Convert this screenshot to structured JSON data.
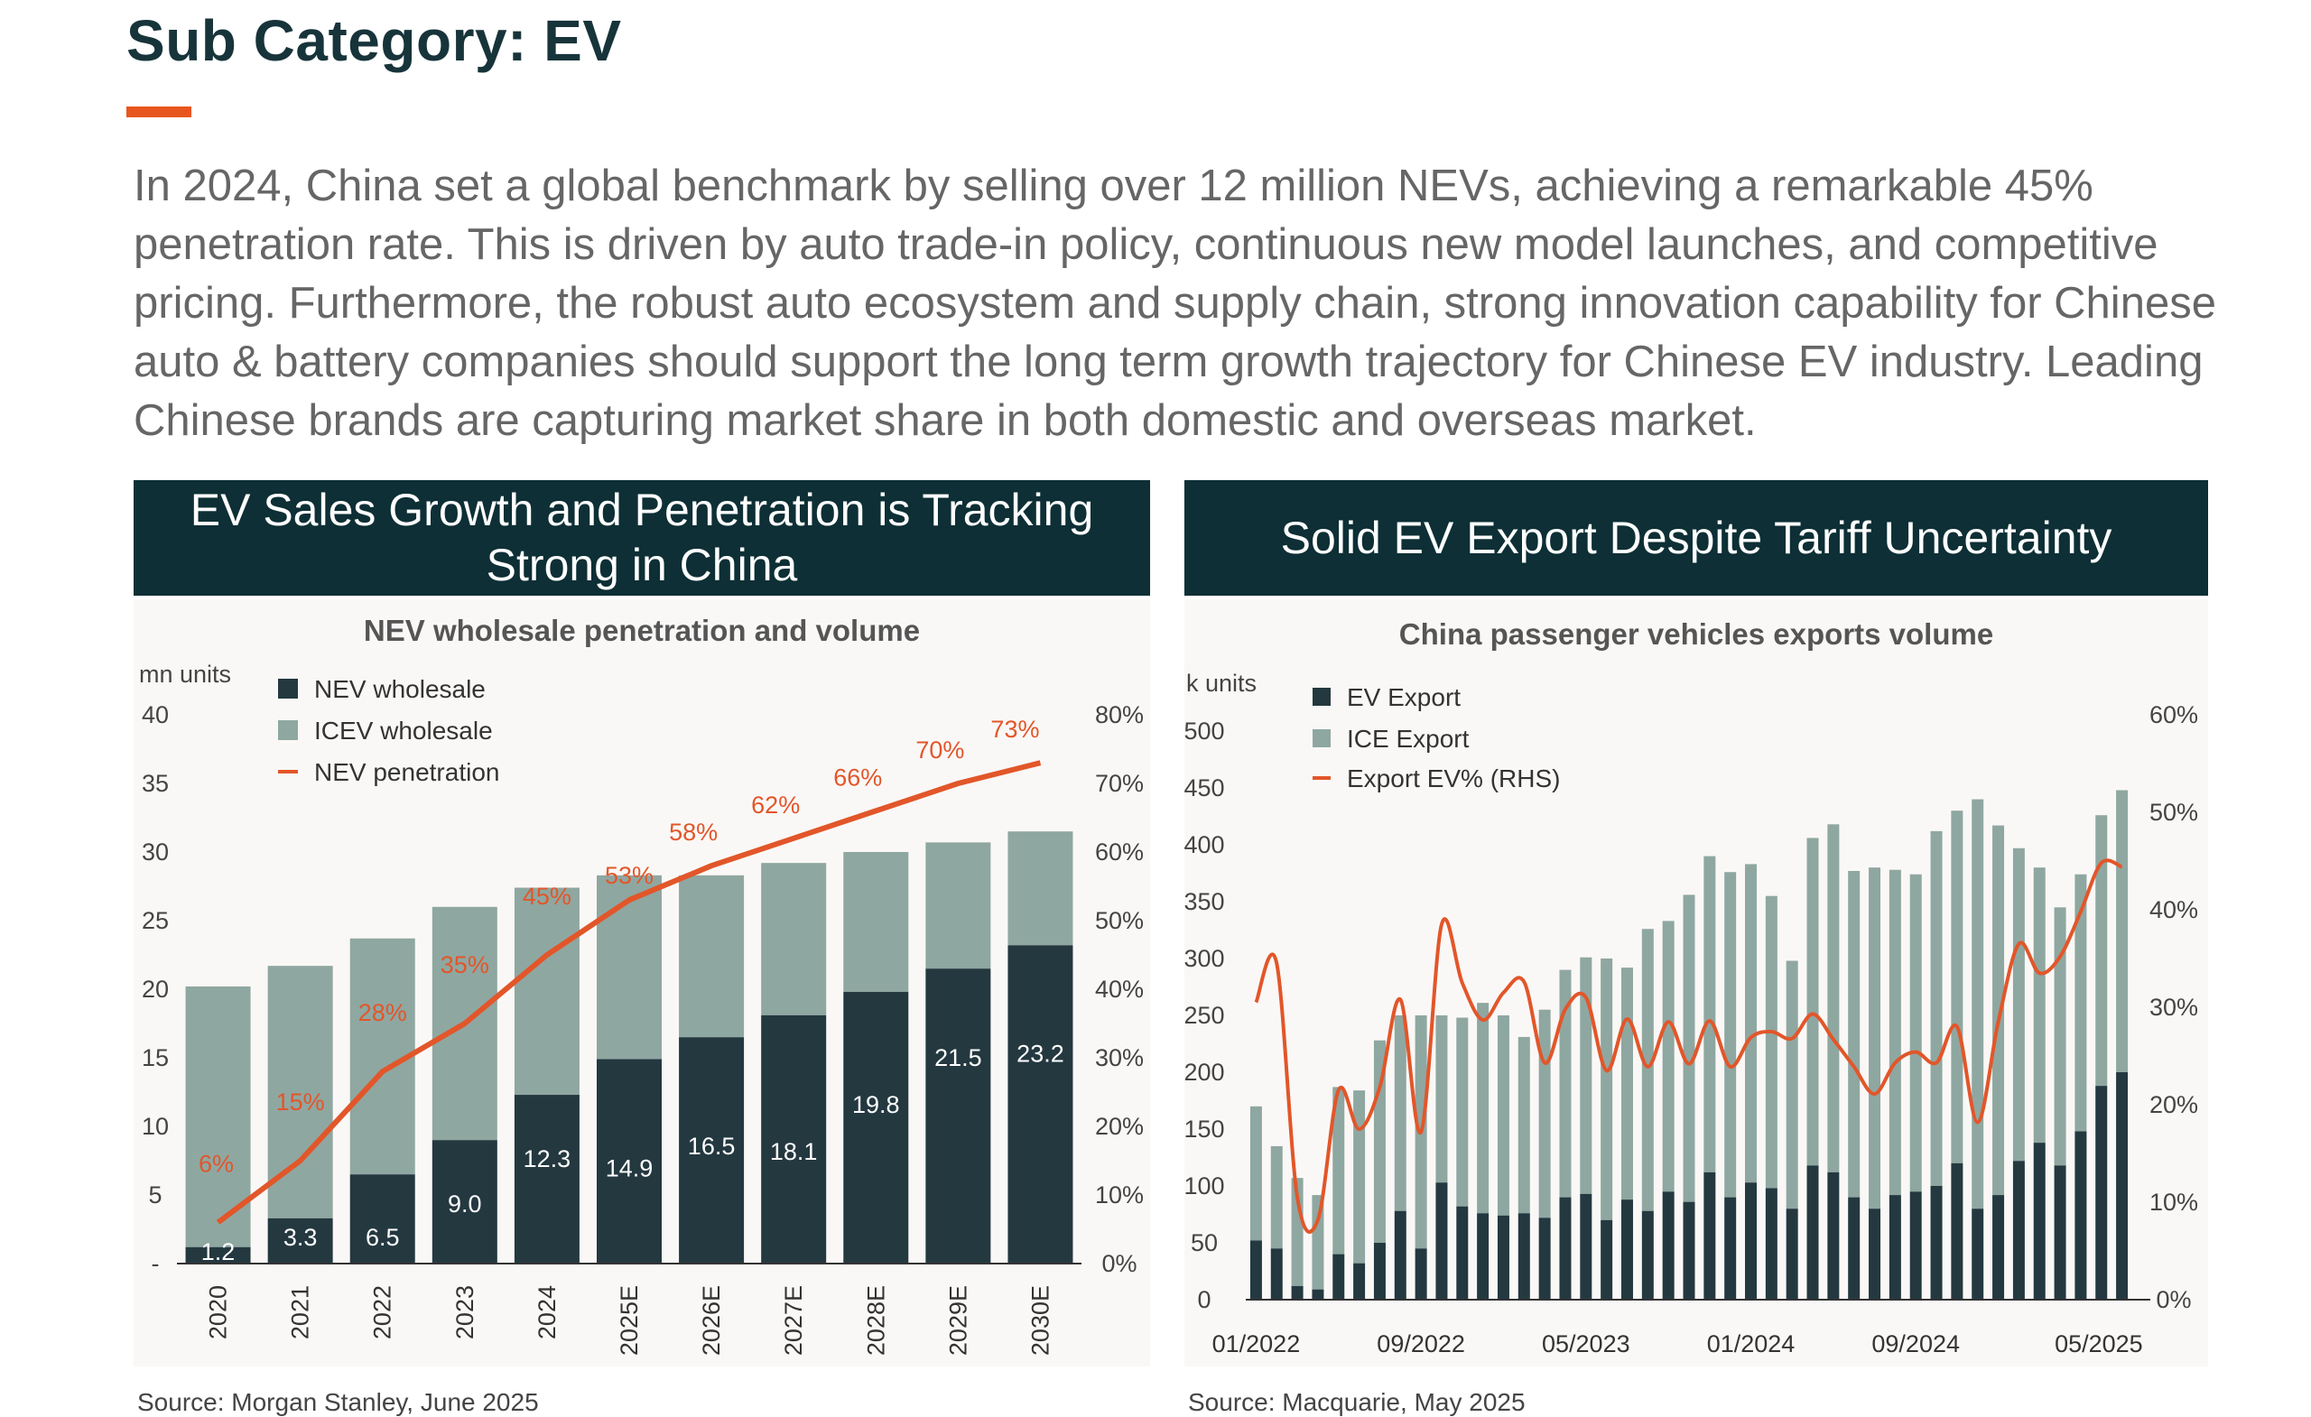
{
  "page": {
    "title": "Sub Category: EV",
    "intro": "In 2024, China set a global benchmark by selling over 12 million NEVs, achieving a remarkable 45% penetration rate. This is driven by auto trade-in policy, continuous new model launches, and competitive pricing. Furthermore, the robust auto ecosystem and supply chain, strong innovation capability for Chinese auto & battery companies should support the long term growth trajectory for Chinese EV industry. Leading Chinese brands are capturing market share in both domestic and overseas market."
  },
  "left_panel": {
    "header": "EV Sales Growth and Penetration is Tracking Strong in China",
    "source": "Source: Morgan Stanley, June 2025"
  },
  "right_panel": {
    "header": "Solid EV Export Despite Tariff Uncertainty",
    "source": "Source: Macquarie, May 2025"
  },
  "colors": {
    "dark_bar": "#243840",
    "light_bar": "#8fa7a1",
    "line": "#e2562a",
    "header_bg": "#0d2f35",
    "accent": "#e8561f"
  },
  "chart_data": [
    {
      "type": "bar",
      "title": "NEV wholesale penetration and volume",
      "ylabel": "mn units",
      "categories": [
        "2020",
        "2021",
        "2022",
        "2023",
        "2024",
        "2025E",
        "2026E",
        "2027E",
        "2028E",
        "2029E",
        "2030E"
      ],
      "ylim": [
        0,
        40
      ],
      "y_ticks": [
        "-",
        "5",
        "10",
        "15",
        "20",
        "25",
        "30",
        "35",
        "40"
      ],
      "y2lim": [
        0,
        80
      ],
      "y2_ticks": [
        "0%",
        "10%",
        "20%",
        "30%",
        "40%",
        "50%",
        "60%",
        "70%",
        "80%"
      ],
      "stacked": true,
      "legend_position": "top-left",
      "series": [
        {
          "name": "NEV wholesale",
          "type": "bar",
          "values": [
            1.2,
            3.3,
            6.5,
            9.0,
            12.3,
            14.9,
            16.5,
            18.1,
            19.8,
            21.5,
            23.2
          ],
          "labels": [
            "1.2",
            "3.3",
            "6.5",
            "9.0",
            "12.3",
            "14.9",
            "16.5",
            "18.1",
            "19.8",
            "21.5",
            "23.2"
          ]
        },
        {
          "name": "ICEV wholesale",
          "type": "bar",
          "values": [
            19.0,
            18.4,
            17.2,
            17.0,
            15.1,
            13.4,
            11.8,
            11.1,
            10.2,
            9.2,
            8.3
          ]
        },
        {
          "name": "NEV penetration",
          "type": "line",
          "axis": "right",
          "values": [
            6,
            15,
            28,
            35,
            45,
            53,
            58,
            62,
            66,
            70,
            73
          ],
          "labels": [
            "6%",
            "15%",
            "28%",
            "35%",
            "45%",
            "53%",
            "58%",
            "62%",
            "66%",
            "70%",
            "73%"
          ]
        }
      ]
    },
    {
      "type": "bar",
      "title": "China passenger vehicles exports volume",
      "ylabel": "k units",
      "x_start": "01/2022",
      "x_tick_labels": [
        "01/2022",
        "09/2022",
        "05/2023",
        "01/2024",
        "09/2024",
        "05/2025"
      ],
      "ylim": [
        0,
        500
      ],
      "y_ticks": [
        "0",
        "50",
        "100",
        "150",
        "200",
        "250",
        "300",
        "350",
        "400",
        "450",
        "500"
      ],
      "y2lim": [
        0,
        60
      ],
      "y2_ticks": [
        "0%",
        "10%",
        "20%",
        "30%",
        "40%",
        "50%",
        "60%"
      ],
      "stacked": true,
      "legend_position": "top-left",
      "series": [
        {
          "name": "EV Export",
          "type": "bar",
          "values": [
            52,
            45,
            12,
            9,
            40,
            32,
            50,
            78,
            45,
            103,
            82,
            76,
            74,
            76,
            72,
            90,
            93,
            70,
            88,
            78,
            95,
            86,
            112,
            90,
            103,
            98,
            80,
            118,
            112,
            90,
            80,
            92,
            95,
            100,
            120,
            80,
            92,
            122,
            138,
            118,
            148,
            188,
            200
          ]
        },
        {
          "name": "ICE Export",
          "type": "bar",
          "values": [
            118,
            90,
            95,
            83,
            147,
            152,
            178,
            172,
            205,
            147,
            166,
            185,
            176,
            155,
            183,
            200,
            208,
            230,
            204,
            248,
            238,
            270,
            278,
            286,
            280,
            257,
            218,
            288,
            306,
            287,
            300,
            286,
            279,
            312,
            310,
            360,
            325,
            275,
            242,
            227,
            226,
            238,
            248
          ]
        },
        {
          "name": "Export EV% (RHS)",
          "type": "line",
          "axis": "right",
          "values": [
            30.5,
            34.5,
            10.5,
            8.2,
            21.5,
            17.5,
            21.8,
            30.8,
            17.2,
            38.5,
            32.5,
            28.7,
            31.5,
            32.6,
            24.3,
            29.8,
            31.0,
            23.5,
            28.8,
            23.9,
            28.5,
            24.2,
            28.6,
            23.9,
            26.9,
            27.5,
            26.8,
            29.3,
            26.7,
            23.9,
            21.1,
            24.3,
            25.4,
            24.3,
            28.0,
            18.2,
            28.5,
            36.5,
            33.5,
            35.2,
            39.8,
            44.8,
            44.4
          ]
        }
      ]
    }
  ]
}
